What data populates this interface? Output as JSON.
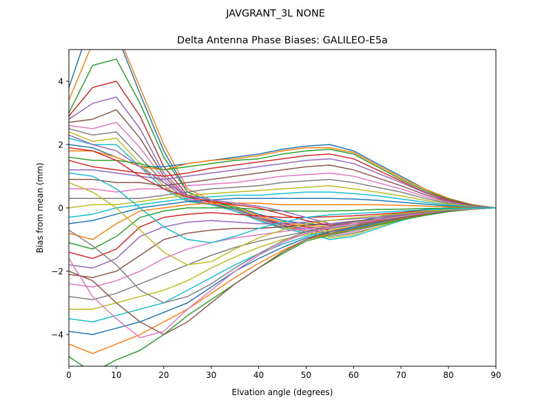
{
  "suptitle": "JAVGRANT_3L      NONE",
  "chart_data": {
    "type": "line",
    "title": "Delta Antenna Phase Biases: GALILEO-E5a",
    "xlabel": "Elvation angle (degrees)",
    "ylabel": "Bias from mean (mm)",
    "xlim": [
      0,
      90
    ],
    "ylim": [
      -5,
      5
    ],
    "x": [
      0,
      5,
      10,
      15,
      20,
      25,
      30,
      35,
      40,
      45,
      50,
      55,
      60,
      65,
      70,
      75,
      80,
      85,
      90
    ],
    "xticks": [
      0,
      10,
      20,
      30,
      40,
      50,
      60,
      70,
      80,
      90
    ],
    "yticks": [
      -4,
      -2,
      0,
      2,
      4
    ],
    "grid": false,
    "legend": "none",
    "color_cycle": [
      "#1f77b4",
      "#ff7f0e",
      "#2ca02c",
      "#d62728",
      "#9467bd",
      "#8c564b",
      "#e377c2",
      "#7f7f7f",
      "#bcbd22",
      "#17becf"
    ],
    "series": [
      {
        "values": [
          3.8,
          6.0,
          5.5,
          3.6,
          1.8,
          0.5,
          0.2,
          0.05,
          -0.2,
          -0.4,
          -0.5,
          -0.55,
          -0.45,
          -0.3,
          -0.15,
          -0.05,
          0.0,
          0.0,
          0.0
        ]
      },
      {
        "values": [
          3.4,
          5.2,
          5.6,
          3.8,
          2.0,
          0.6,
          0.25,
          0.05,
          -0.25,
          -0.45,
          -0.55,
          -0.6,
          -0.5,
          -0.35,
          -0.2,
          -0.08,
          -0.02,
          0.0,
          0.0
        ]
      },
      {
        "values": [
          3.0,
          4.5,
          4.7,
          3.3,
          1.6,
          0.5,
          0.2,
          0.0,
          -0.3,
          -0.5,
          -0.6,
          -0.65,
          -0.55,
          -0.38,
          -0.22,
          -0.1,
          -0.03,
          0.0,
          0.0
        ]
      },
      {
        "values": [
          2.9,
          3.8,
          4.0,
          2.9,
          1.3,
          0.4,
          0.15,
          -0.05,
          -0.3,
          -0.5,
          -0.6,
          -0.7,
          -0.6,
          -0.4,
          -0.25,
          -0.12,
          -0.04,
          0.0,
          0.0
        ]
      },
      {
        "values": [
          2.8,
          3.3,
          3.5,
          2.5,
          1.1,
          0.35,
          0.1,
          -0.05,
          -0.3,
          -0.55,
          -0.65,
          -0.75,
          -0.65,
          -0.45,
          -0.28,
          -0.13,
          -0.05,
          0.0,
          0.0
        ]
      },
      {
        "values": [
          2.7,
          2.8,
          3.1,
          2.2,
          1.0,
          0.3,
          0.1,
          -0.1,
          -0.35,
          -0.55,
          -0.7,
          -0.8,
          -0.7,
          -0.5,
          -0.3,
          -0.15,
          -0.05,
          0.0,
          0.0
        ]
      },
      {
        "values": [
          2.6,
          2.5,
          2.7,
          1.9,
          0.9,
          0.3,
          0.1,
          -0.1,
          -0.4,
          -0.6,
          -0.7,
          -0.85,
          -0.75,
          -0.55,
          -0.32,
          -0.16,
          -0.06,
          0.0,
          0.0
        ]
      },
      {
        "values": [
          2.5,
          2.3,
          2.4,
          1.6,
          0.8,
          0.25,
          0.1,
          -0.1,
          -0.4,
          -0.6,
          -0.75,
          -0.9,
          -0.8,
          -0.6,
          -0.35,
          -0.18,
          -0.07,
          0.0,
          0.0
        ]
      },
      {
        "values": [
          2.4,
          2.1,
          2.2,
          1.4,
          0.7,
          0.2,
          0.1,
          -0.1,
          -0.4,
          -0.65,
          -0.8,
          -0.95,
          -0.85,
          -0.6,
          -0.38,
          -0.2,
          -0.08,
          0.0,
          0.0
        ]
      },
      {
        "values": [
          2.2,
          2.0,
          2.0,
          1.3,
          0.6,
          0.2,
          0.1,
          -0.1,
          -0.4,
          -0.65,
          -0.8,
          -1.0,
          -0.9,
          -0.65,
          -0.4,
          -0.22,
          -0.09,
          0.0,
          0.0
        ]
      },
      {
        "values": [
          2.0,
          1.9,
          1.6,
          1.3,
          1.3,
          1.4,
          1.5,
          1.6,
          1.7,
          1.85,
          1.95,
          2.0,
          1.8,
          1.4,
          1.0,
          0.6,
          0.3,
          0.1,
          0.0
        ]
      },
      {
        "values": [
          1.8,
          1.8,
          1.6,
          1.3,
          1.2,
          1.4,
          1.5,
          1.55,
          1.65,
          1.8,
          1.9,
          1.9,
          1.75,
          1.35,
          0.95,
          0.6,
          0.3,
          0.1,
          0.0
        ]
      },
      {
        "values": [
          1.6,
          1.5,
          1.5,
          1.4,
          1.2,
          1.3,
          1.4,
          1.5,
          1.55,
          1.7,
          1.8,
          1.85,
          1.7,
          1.3,
          0.9,
          0.55,
          0.28,
          0.09,
          0.0
        ]
      },
      {
        "values": [
          1.5,
          1.3,
          1.2,
          1.1,
          1.0,
          1.1,
          1.25,
          1.35,
          1.45,
          1.55,
          1.65,
          1.7,
          1.55,
          1.2,
          0.85,
          0.5,
          0.25,
          0.08,
          0.0
        ]
      },
      {
        "values": [
          1.2,
          1.2,
          1.1,
          1.0,
          0.9,
          1.0,
          1.1,
          1.2,
          1.3,
          1.4,
          1.5,
          1.55,
          1.4,
          1.1,
          0.8,
          0.48,
          0.22,
          0.07,
          0.0
        ]
      },
      {
        "values": [
          0.9,
          0.9,
          0.8,
          0.8,
          0.7,
          0.8,
          0.9,
          1.0,
          1.1,
          1.2,
          1.3,
          1.35,
          1.2,
          0.95,
          0.7,
          0.42,
          0.2,
          0.06,
          0.0
        ]
      },
      {
        "values": [
          0.6,
          0.6,
          0.5,
          0.6,
          0.6,
          0.7,
          0.75,
          0.8,
          0.9,
          1.0,
          1.05,
          1.1,
          1.0,
          0.8,
          0.6,
          0.36,
          0.18,
          0.05,
          0.0
        ]
      },
      {
        "values": [
          0.3,
          0.3,
          0.3,
          0.3,
          0.4,
          0.5,
          0.6,
          0.65,
          0.7,
          0.8,
          0.85,
          0.9,
          0.8,
          0.65,
          0.5,
          0.3,
          0.15,
          0.05,
          0.0
        ]
      },
      {
        "values": [
          0.0,
          0.1,
          0.1,
          0.2,
          0.3,
          0.4,
          0.45,
          0.5,
          0.55,
          0.6,
          0.65,
          0.7,
          0.6,
          0.5,
          0.38,
          0.24,
          0.12,
          0.04,
          0.0
        ]
      },
      {
        "values": [
          -0.3,
          -0.2,
          0.0,
          0.1,
          0.2,
          0.3,
          0.35,
          0.4,
          0.4,
          0.45,
          0.5,
          0.5,
          0.45,
          0.38,
          0.28,
          0.18,
          0.09,
          0.03,
          0.0
        ]
      },
      {
        "values": [
          -0.5,
          -0.4,
          -0.2,
          0.0,
          0.1,
          0.2,
          0.25,
          0.3,
          0.3,
          0.3,
          0.3,
          0.3,
          0.28,
          0.24,
          0.18,
          0.12,
          0.06,
          0.02,
          0.0
        ]
      },
      {
        "values": [
          -0.8,
          -1.0,
          -0.5,
          -0.1,
          0.0,
          0.1,
          0.15,
          0.15,
          0.15,
          0.1,
          0.1,
          0.1,
          0.1,
          0.1,
          0.08,
          0.06,
          0.03,
          0.01,
          0.0
        ]
      },
      {
        "values": [
          -1.1,
          -1.3,
          -0.9,
          -0.3,
          -0.1,
          0.0,
          0.0,
          0.0,
          -0.05,
          -0.1,
          -0.1,
          -0.1,
          -0.08,
          -0.05,
          -0.04,
          -0.02,
          -0.01,
          0.0,
          0.0
        ]
      },
      {
        "values": [
          -1.4,
          -1.6,
          -1.3,
          -0.6,
          -0.3,
          -0.2,
          -0.15,
          -0.2,
          -0.25,
          -0.3,
          -0.3,
          -0.28,
          -0.25,
          -0.2,
          -0.15,
          -0.08,
          -0.04,
          -0.01,
          0.0
        ]
      },
      {
        "values": [
          -1.8,
          -1.9,
          -1.6,
          -0.9,
          -0.6,
          -0.45,
          -0.4,
          -0.45,
          -0.5,
          -0.5,
          -0.45,
          -0.4,
          -0.35,
          -0.3,
          -0.2,
          -0.12,
          -0.06,
          -0.02,
          0.0
        ]
      },
      {
        "values": [
          -2.1,
          -2.2,
          -2.0,
          -1.5,
          -1.0,
          -0.8,
          -0.7,
          -0.65,
          -0.65,
          -0.6,
          -0.55,
          -0.5,
          -0.42,
          -0.35,
          -0.25,
          -0.15,
          -0.07,
          -0.02,
          0.0
        ]
      },
      {
        "values": [
          -2.4,
          -2.5,
          -2.3,
          -2.0,
          -1.6,
          -1.3,
          -1.1,
          -0.95,
          -0.85,
          -0.75,
          -0.65,
          -0.6,
          -0.5,
          -0.4,
          -0.28,
          -0.17,
          -0.08,
          -0.03,
          0.0
        ]
      },
      {
        "values": [
          -2.8,
          -2.9,
          -2.7,
          -2.4,
          -2.1,
          -1.8,
          -1.5,
          -1.25,
          -1.05,
          -0.9,
          -0.75,
          -0.65,
          -0.55,
          -0.43,
          -0.3,
          -0.18,
          -0.09,
          -0.03,
          0.0
        ]
      },
      {
        "values": [
          -3.2,
          -3.2,
          -3.0,
          -2.8,
          -2.6,
          -2.3,
          -1.9,
          -1.55,
          -1.25,
          -1.0,
          -0.85,
          -0.7,
          -0.6,
          -0.45,
          -0.32,
          -0.2,
          -0.1,
          -0.03,
          0.0
        ]
      },
      {
        "values": [
          -3.5,
          -3.6,
          -3.4,
          -3.2,
          -3.0,
          -2.6,
          -2.2,
          -1.8,
          -1.45,
          -1.15,
          -0.9,
          -0.75,
          -0.62,
          -0.48,
          -0.34,
          -0.21,
          -0.1,
          -0.03,
          0.0
        ]
      },
      {
        "values": [
          -3.9,
          -4.0,
          -3.8,
          -3.6,
          -3.3,
          -3.0,
          -2.5,
          -2.0,
          -1.6,
          -1.25,
          -0.95,
          -0.8,
          -0.65,
          -0.5,
          -0.35,
          -0.22,
          -0.11,
          -0.04,
          0.0
        ]
      },
      {
        "values": [
          -4.3,
          -4.6,
          -4.3,
          -4.0,
          -3.6,
          -3.2,
          -2.7,
          -2.2,
          -1.75,
          -1.35,
          -1.0,
          -0.82,
          -0.68,
          -0.52,
          -0.36,
          -0.23,
          -0.11,
          -0.04,
          0.0
        ]
      },
      {
        "values": [
          -4.7,
          -5.2,
          -4.8,
          -4.5,
          -4.0,
          -3.4,
          -2.9,
          -2.4,
          -1.9,
          -1.45,
          -1.05,
          -0.85,
          -0.7,
          -0.54,
          -0.38,
          -0.24,
          -0.12,
          -0.04,
          0.0
        ]
      },
      {
        "values": [
          1.9,
          1.8,
          1.5,
          1.0,
          0.6,
          0.35,
          0.2,
          0.1,
          0.0,
          -0.2,
          -0.4,
          -0.55,
          -0.5,
          -0.4,
          -0.25,
          -0.12,
          -0.05,
          0.0,
          0.0
        ]
      },
      {
        "values": [
          2.3,
          2.0,
          1.8,
          1.3,
          0.8,
          0.4,
          0.25,
          0.15,
          0.05,
          -0.1,
          -0.3,
          -0.5,
          -0.45,
          -0.35,
          -0.22,
          -0.1,
          -0.04,
          0.0,
          0.0
        ]
      },
      {
        "values": [
          -2.0,
          -2.3,
          -3.0,
          -3.6,
          -4.0,
          -3.6,
          -3.0,
          -2.4,
          -1.9,
          -1.4,
          -1.0,
          -0.75,
          -0.6,
          -0.45,
          -0.32,
          -0.2,
          -0.1,
          -0.03,
          0.0
        ]
      },
      {
        "values": [
          -1.6,
          -2.8,
          -3.5,
          -4.1,
          -3.9,
          -3.2,
          -2.6,
          -2.0,
          -1.5,
          -1.1,
          -0.8,
          -0.62,
          -0.5,
          -0.38,
          -0.27,
          -0.17,
          -0.08,
          -0.03,
          0.0
        ]
      },
      {
        "values": [
          -0.7,
          -1.2,
          -1.8,
          -2.6,
          -3.0,
          -2.8,
          -2.4,
          -1.9,
          -1.45,
          -1.05,
          -0.75,
          -0.58,
          -0.45,
          -0.35,
          -0.24,
          -0.15,
          -0.07,
          -0.02,
          0.0
        ]
      },
      {
        "values": [
          0.8,
          0.5,
          0.0,
          -0.7,
          -1.4,
          -1.8,
          -1.7,
          -1.3,
          -0.95,
          -0.7,
          -0.5,
          -0.4,
          -0.32,
          -0.25,
          -0.18,
          -0.11,
          -0.05,
          -0.02,
          0.0
        ]
      },
      {
        "values": [
          1.1,
          1.0,
          0.6,
          0.0,
          -0.6,
          -1.0,
          -1.1,
          -0.9,
          -0.65,
          -0.45,
          -0.3,
          -0.22,
          -0.18,
          -0.14,
          -0.1,
          -0.06,
          -0.03,
          -0.01,
          0.0
        ]
      }
    ]
  }
}
